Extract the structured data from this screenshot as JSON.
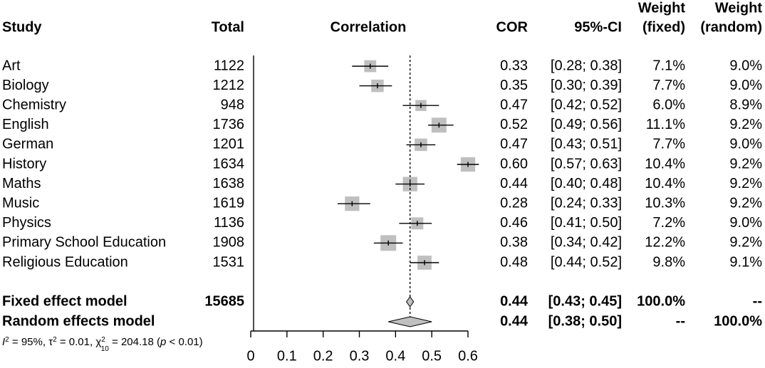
{
  "chart_data": {
    "type": "forest",
    "columns": {
      "study": "Study",
      "total": "Total",
      "plot": "Correlation",
      "cor": "COR",
      "ci": "95%-CI",
      "weight_fixed": [
        "Weight",
        "(fixed)"
      ],
      "weight_random": [
        "Weight",
        "(random)"
      ]
    },
    "studies": [
      {
        "name": "Art",
        "total": "1122",
        "cor": 0.33,
        "lo": 0.28,
        "hi": 0.38,
        "cor_text": "0.33",
        "ci_text": "[0.28; 0.38]",
        "w_fixed": "7.1%",
        "w_random": "9.0%"
      },
      {
        "name": "Biology",
        "total": "1212",
        "cor": 0.35,
        "lo": 0.3,
        "hi": 0.39,
        "cor_text": "0.35",
        "ci_text": "[0.30; 0.39]",
        "w_fixed": "7.7%",
        "w_random": "9.0%"
      },
      {
        "name": "Chemistry",
        "total": "948",
        "cor": 0.47,
        "lo": 0.42,
        "hi": 0.52,
        "cor_text": "0.47",
        "ci_text": "[0.42; 0.52]",
        "w_fixed": "6.0%",
        "w_random": "8.9%"
      },
      {
        "name": "English",
        "total": "1736",
        "cor": 0.52,
        "lo": 0.49,
        "hi": 0.56,
        "cor_text": "0.52",
        "ci_text": "[0.49; 0.56]",
        "w_fixed": "11.1%",
        "w_random": "9.2%"
      },
      {
        "name": "German",
        "total": "1201",
        "cor": 0.47,
        "lo": 0.43,
        "hi": 0.51,
        "cor_text": "0.47",
        "ci_text": "[0.43; 0.51]",
        "w_fixed": "7.7%",
        "w_random": "9.0%"
      },
      {
        "name": "History",
        "total": "1634",
        "cor": 0.6,
        "lo": 0.57,
        "hi": 0.63,
        "cor_text": "0.60",
        "ci_text": "[0.57; 0.63]",
        "w_fixed": "10.4%",
        "w_random": "9.2%"
      },
      {
        "name": "Maths",
        "total": "1638",
        "cor": 0.44,
        "lo": 0.4,
        "hi": 0.48,
        "cor_text": "0.44",
        "ci_text": "[0.40; 0.48]",
        "w_fixed": "10.4%",
        "w_random": "9.2%"
      },
      {
        "name": "Music",
        "total": "1619",
        "cor": 0.28,
        "lo": 0.24,
        "hi": 0.33,
        "cor_text": "0.28",
        "ci_text": "[0.24; 0.33]",
        "w_fixed": "10.3%",
        "w_random": "9.2%"
      },
      {
        "name": "Physics",
        "total": "1136",
        "cor": 0.46,
        "lo": 0.41,
        "hi": 0.5,
        "cor_text": "0.46",
        "ci_text": "[0.41; 0.50]",
        "w_fixed": "7.2%",
        "w_random": "9.0%"
      },
      {
        "name": "Primary School Education",
        "total": "1908",
        "cor": 0.38,
        "lo": 0.34,
        "hi": 0.42,
        "cor_text": "0.38",
        "ci_text": "[0.34; 0.42]",
        "w_fixed": "12.2%",
        "w_random": "9.2%"
      },
      {
        "name": "Religious Education",
        "total": "1531",
        "cor": 0.48,
        "lo": 0.44,
        "hi": 0.52,
        "cor_text": "0.48",
        "ci_text": "[0.44; 0.52]",
        "w_fixed": "9.8%",
        "w_random": "9.1%"
      }
    ],
    "summary": [
      {
        "name": "Fixed effect model",
        "total": "15685",
        "cor": 0.44,
        "lo": 0.43,
        "hi": 0.45,
        "cor_text": "0.44",
        "ci_text": "[0.43; 0.45]",
        "w_fixed": "100.0%",
        "w_random": "--"
      },
      {
        "name": "Random effects model",
        "total": "",
        "cor": 0.44,
        "lo": 0.38,
        "hi": 0.5,
        "cor_text": "0.44",
        "ci_text": "[0.38; 0.50]",
        "w_fixed": "--",
        "w_random": "100.0%"
      }
    ],
    "heterogeneity": {
      "i2": "= 95%,",
      "tau2": "= 0.01,",
      "chi2": "= 204.18 (",
      "p": "p",
      "p_rest": "< 0.01)",
      "chi_df": "10"
    },
    "xaxis": {
      "range": [
        0,
        0.6
      ],
      "ticks": [
        0,
        0.1,
        0.2,
        0.3,
        0.4,
        0.5,
        0.6
      ],
      "tick_labels": [
        "0",
        "0.1",
        "0.2",
        "0.3",
        "0.4",
        "0.5",
        "0.6"
      ]
    },
    "reference_line": 0.44
  }
}
